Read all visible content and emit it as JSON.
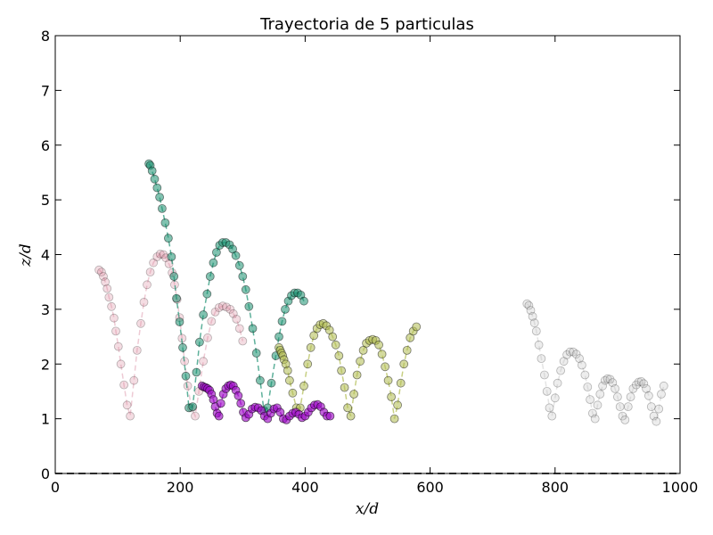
{
  "chart_data": {
    "type": "scatter",
    "title": "Trayectoria de 5 particulas",
    "xlabel": "x/d",
    "ylabel": "z/d",
    "xlim": [
      0,
      1000
    ],
    "ylim": [
      0,
      8
    ],
    "xticks": [
      0,
      200,
      400,
      600,
      800,
      1000
    ],
    "yticks": [
      0,
      1,
      2,
      3,
      4,
      5,
      6,
      7,
      8
    ],
    "grid": false,
    "reference_line": {
      "y": 0,
      "style": "dashed",
      "color": "#555555"
    },
    "series": [
      {
        "color": "#d98aa0",
        "opacity": 0.3,
        "points": [
          [
            70,
            3.72
          ],
          [
            74,
            3.68
          ],
          [
            77,
            3.6
          ],
          [
            80,
            3.5
          ],
          [
            83,
            3.38
          ],
          [
            86,
            3.22
          ],
          [
            90,
            3.05
          ],
          [
            94,
            2.84
          ],
          [
            97,
            2.6
          ],
          [
            101,
            2.32
          ],
          [
            105,
            2.0
          ],
          [
            110,
            1.62
          ],
          [
            115,
            1.25
          ],
          [
            120,
            1.05
          ],
          [
            126,
            1.7
          ],
          [
            131,
            2.25
          ],
          [
            137,
            2.74
          ],
          [
            142,
            3.13
          ],
          [
            147,
            3.45
          ],
          [
            152,
            3.68
          ],
          [
            157,
            3.85
          ],
          [
            163,
            3.96
          ],
          [
            168,
            4.01
          ],
          [
            173,
            4.0
          ],
          [
            177,
            3.94
          ],
          [
            182,
            3.83
          ],
          [
            187,
            3.67
          ],
          [
            191,
            3.45
          ],
          [
            195,
            3.18
          ],
          [
            199,
            2.85
          ],
          [
            203,
            2.47
          ],
          [
            207,
            2.05
          ],
          [
            212,
            1.6
          ],
          [
            218,
            1.2
          ],
          [
            224,
            1.05
          ],
          [
            230,
            1.5
          ],
          [
            237,
            2.05
          ],
          [
            244,
            2.48
          ],
          [
            250,
            2.78
          ],
          [
            256,
            2.95
          ],
          [
            262,
            3.03
          ],
          [
            268,
            3.06
          ],
          [
            274,
            3.04
          ],
          [
            280,
            3.0
          ],
          [
            285,
            2.92
          ],
          [
            290,
            2.82
          ],
          [
            295,
            2.65
          ],
          [
            300,
            2.42
          ]
        ]
      },
      {
        "color": "#1a9070",
        "opacity": 0.55,
        "points": [
          [
            150,
            5.66
          ],
          [
            152,
            5.63
          ],
          [
            155,
            5.53
          ],
          [
            159,
            5.38
          ],
          [
            163,
            5.22
          ],
          [
            167,
            5.05
          ],
          [
            171,
            4.84
          ],
          [
            176,
            4.58
          ],
          [
            181,
            4.3
          ],
          [
            186,
            3.96
          ],
          [
            190,
            3.6
          ],
          [
            194,
            3.2
          ],
          [
            199,
            2.77
          ],
          [
            204,
            2.3
          ],
          [
            209,
            1.78
          ],
          [
            214,
            1.2
          ],
          [
            220,
            1.22
          ],
          [
            226,
            1.85
          ],
          [
            231,
            2.4
          ],
          [
            237,
            2.9
          ],
          [
            243,
            3.28
          ],
          [
            248,
            3.6
          ],
          [
            253,
            3.85
          ],
          [
            258,
            4.04
          ],
          [
            263,
            4.17
          ],
          [
            268,
            4.22
          ],
          [
            273,
            4.22
          ],
          [
            279,
            4.18
          ],
          [
            284,
            4.1
          ],
          [
            289,
            3.98
          ],
          [
            295,
            3.8
          ],
          [
            300,
            3.6
          ],
          [
            305,
            3.36
          ],
          [
            310,
            3.05
          ],
          [
            316,
            2.65
          ],
          [
            322,
            2.2
          ],
          [
            328,
            1.7
          ],
          [
            334,
            1.15
          ],
          [
            340,
            1.2
          ],
          [
            346,
            1.65
          ],
          [
            353,
            2.15
          ],
          [
            358,
            2.5
          ],
          [
            363,
            2.78
          ],
          [
            368,
            3.0
          ],
          [
            373,
            3.15
          ],
          [
            378,
            3.25
          ],
          [
            383,
            3.3
          ],
          [
            388,
            3.3
          ],
          [
            393,
            3.26
          ],
          [
            398,
            3.15
          ]
        ]
      },
      {
        "color": "#b0bc50",
        "opacity": 0.55,
        "points": [
          [
            358,
            2.3
          ],
          [
            360,
            2.25
          ],
          [
            362,
            2.2
          ],
          [
            364,
            2.15
          ],
          [
            366,
            2.08
          ],
          [
            369,
            2.0
          ],
          [
            372,
            1.88
          ],
          [
            375,
            1.7
          ],
          [
            380,
            1.47
          ],
          [
            386,
            1.2
          ],
          [
            392,
            1.2
          ],
          [
            398,
            1.6
          ],
          [
            404,
            2.0
          ],
          [
            409,
            2.3
          ],
          [
            414,
            2.52
          ],
          [
            419,
            2.65
          ],
          [
            424,
            2.72
          ],
          [
            429,
            2.74
          ],
          [
            434,
            2.7
          ],
          [
            439,
            2.62
          ],
          [
            444,
            2.5
          ],
          [
            449,
            2.35
          ],
          [
            454,
            2.15
          ],
          [
            458,
            1.88
          ],
          [
            463,
            1.57
          ],
          [
            468,
            1.2
          ],
          [
            473,
            1.05
          ],
          [
            478,
            1.45
          ],
          [
            483,
            1.8
          ],
          [
            488,
            2.05
          ],
          [
            493,
            2.25
          ],
          [
            498,
            2.38
          ],
          [
            503,
            2.43
          ],
          [
            508,
            2.45
          ],
          [
            513,
            2.43
          ],
          [
            518,
            2.35
          ],
          [
            523,
            2.18
          ],
          [
            528,
            1.95
          ],
          [
            533,
            1.7
          ],
          [
            538,
            1.4
          ],
          [
            543,
            1.0
          ],
          [
            548,
            1.25
          ],
          [
            553,
            1.65
          ],
          [
            558,
            2.0
          ],
          [
            563,
            2.25
          ],
          [
            568,
            2.48
          ],
          [
            573,
            2.6
          ],
          [
            578,
            2.68
          ]
        ]
      },
      {
        "color": "#a010c8",
        "opacity": 0.65,
        "points": [
          [
            235,
            1.6
          ],
          [
            238,
            1.58
          ],
          [
            241,
            1.57
          ],
          [
            244,
            1.55
          ],
          [
            247,
            1.52
          ],
          [
            250,
            1.45
          ],
          [
            253,
            1.35
          ],
          [
            256,
            1.22
          ],
          [
            259,
            1.1
          ],
          [
            262,
            1.05
          ],
          [
            265,
            1.28
          ],
          [
            269,
            1.45
          ],
          [
            273,
            1.55
          ],
          [
            277,
            1.6
          ],
          [
            281,
            1.62
          ],
          [
            285,
            1.6
          ],
          [
            289,
            1.52
          ],
          [
            293,
            1.42
          ],
          [
            297,
            1.28
          ],
          [
            301,
            1.12
          ],
          [
            305,
            1.02
          ],
          [
            310,
            1.08
          ],
          [
            315,
            1.18
          ],
          [
            320,
            1.21
          ],
          [
            325,
            1.2
          ],
          [
            330,
            1.15
          ],
          [
            335,
            1.05
          ],
          [
            340,
            1.0
          ],
          [
            345,
            1.1
          ],
          [
            350,
            1.18
          ],
          [
            355,
            1.2
          ],
          [
            360,
            1.12
          ],
          [
            365,
            1.0
          ],
          [
            370,
            0.98
          ],
          [
            375,
            1.05
          ],
          [
            380,
            1.1
          ],
          [
            385,
            1.12
          ],
          [
            390,
            1.08
          ],
          [
            395,
            1.02
          ],
          [
            400,
            1.05
          ],
          [
            405,
            1.12
          ],
          [
            410,
            1.2
          ],
          [
            415,
            1.25
          ],
          [
            420,
            1.26
          ],
          [
            425,
            1.22
          ],
          [
            430,
            1.12
          ],
          [
            435,
            1.05
          ],
          [
            440,
            1.05
          ]
        ]
      },
      {
        "color": "#c4c4c4",
        "opacity": 0.3,
        "points": [
          [
            755,
            3.1
          ],
          [
            758,
            3.07
          ],
          [
            761,
            2.98
          ],
          [
            764,
            2.87
          ],
          [
            767,
            2.75
          ],
          [
            770,
            2.6
          ],
          [
            774,
            2.35
          ],
          [
            778,
            2.1
          ],
          [
            783,
            1.8
          ],
          [
            787,
            1.5
          ],
          [
            791,
            1.2
          ],
          [
            795,
            1.05
          ],
          [
            800,
            1.38
          ],
          [
            804,
            1.65
          ],
          [
            809,
            1.88
          ],
          [
            814,
            2.05
          ],
          [
            819,
            2.17
          ],
          [
            824,
            2.22
          ],
          [
            829,
            2.22
          ],
          [
            834,
            2.18
          ],
          [
            839,
            2.1
          ],
          [
            843,
            1.98
          ],
          [
            848,
            1.8
          ],
          [
            852,
            1.58
          ],
          [
            856,
            1.35
          ],
          [
            860,
            1.1
          ],
          [
            864,
            1.0
          ],
          [
            868,
            1.25
          ],
          [
            872,
            1.45
          ],
          [
            876,
            1.6
          ],
          [
            880,
            1.7
          ],
          [
            884,
            1.73
          ],
          [
            888,
            1.72
          ],
          [
            892,
            1.66
          ],
          [
            896,
            1.55
          ],
          [
            900,
            1.4
          ],
          [
            904,
            1.22
          ],
          [
            908,
            1.05
          ],
          [
            912,
            0.98
          ],
          [
            917,
            1.22
          ],
          [
            921,
            1.4
          ],
          [
            925,
            1.55
          ],
          [
            930,
            1.62
          ],
          [
            934,
            1.67
          ],
          [
            938,
            1.68
          ],
          [
            942,
            1.64
          ],
          [
            946,
            1.55
          ],
          [
            950,
            1.42
          ],
          [
            954,
            1.22
          ],
          [
            958,
            1.05
          ],
          [
            962,
            0.95
          ],
          [
            966,
            1.18
          ],
          [
            970,
            1.45
          ],
          [
            974,
            1.6
          ]
        ]
      }
    ]
  }
}
